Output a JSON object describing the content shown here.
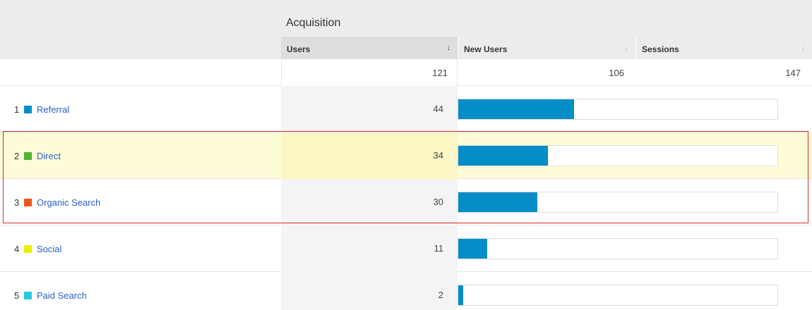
{
  "header": {
    "group_title": "Acquisition",
    "columns": [
      {
        "label": "Users",
        "sort_icon": "sort-arrow-down-icon",
        "sorted": true
      },
      {
        "label": "New Users",
        "sort_icon": "sort-arrow-down-icon",
        "sorted": false
      },
      {
        "label": "Sessions",
        "sort_icon": "sort-arrow-down-icon",
        "sorted": false
      }
    ]
  },
  "totals": {
    "users": "121",
    "new_users": "106",
    "sessions": "147"
  },
  "rows": [
    {
      "num": "1",
      "label": "Referral",
      "color": "#058dc7",
      "users": "44",
      "bar_fraction": 0.3636,
      "highlighted": false
    },
    {
      "num": "2",
      "label": "Direct",
      "color": "#50b432",
      "users": "34",
      "bar_fraction": 0.281,
      "highlighted": true
    },
    {
      "num": "3",
      "label": "Organic Search",
      "color": "#ed561b",
      "users": "30",
      "bar_fraction": 0.2479,
      "highlighted": false
    },
    {
      "num": "4",
      "label": "Social",
      "color": "#edef00",
      "users": "11",
      "bar_fraction": 0.0909,
      "highlighted": false
    },
    {
      "num": "5",
      "label": "Paid Search",
      "color": "#24cbe5",
      "users": "2",
      "bar_fraction": 0.0165,
      "highlighted": false
    }
  ],
  "colors": {
    "bar": "#058dc7",
    "selection_outline": "#d92b2b",
    "link": "#2a60c8"
  }
}
